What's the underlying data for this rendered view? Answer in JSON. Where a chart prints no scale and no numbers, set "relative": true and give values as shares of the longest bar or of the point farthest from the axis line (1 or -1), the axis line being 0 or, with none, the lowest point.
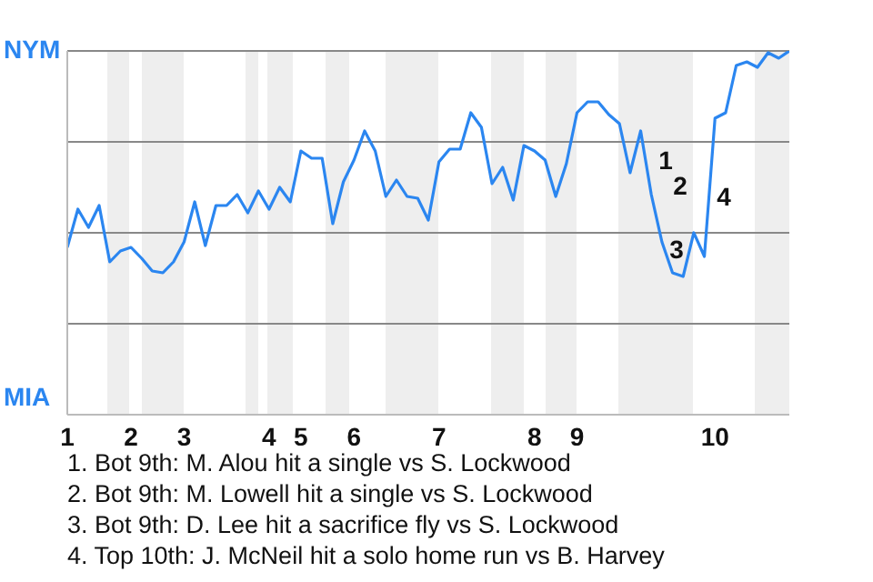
{
  "chart_data": {
    "type": "line",
    "relative": true,
    "marker": "none",
    "line_style": "solid",
    "grid": "y",
    "categories": [
      "1",
      null,
      null,
      null,
      null,
      null,
      "2",
      null,
      null,
      null,
      null,
      "3",
      null,
      null,
      null,
      null,
      null,
      null,
      null,
      "4",
      null,
      null,
      "5",
      null,
      null,
      null,
      null,
      "6",
      null,
      null,
      null,
      null,
      null,
      null,
      null,
      "7",
      null,
      null,
      null,
      null,
      null,
      null,
      null,
      null,
      "8",
      null,
      null,
      null,
      "9",
      null,
      null,
      null,
      null,
      null,
      null,
      null,
      null,
      null,
      null,
      null,
      null,
      "10",
      null,
      null,
      null,
      null,
      null,
      null,
      null
    ],
    "series": [
      {
        "color": "#2b86f0",
        "values": [
          0.46,
          0.565,
          0.515,
          0.575,
          0.42,
          0.45,
          0.46,
          0.43,
          0.395,
          0.39,
          0.42,
          0.475,
          0.585,
          0.465,
          0.575,
          0.575,
          0.605,
          0.555,
          0.615,
          0.565,
          0.625,
          0.585,
          0.725,
          0.705,
          0.705,
          0.525,
          0.64,
          0.7,
          0.78,
          0.725,
          0.6,
          0.645,
          0.6,
          0.595,
          0.535,
          0.695,
          0.73,
          0.73,
          0.83,
          0.79,
          0.635,
          0.68,
          0.59,
          0.74,
          0.725,
          0.7,
          0.6,
          0.69,
          0.83,
          0.86,
          0.86,
          0.825,
          0.8,
          0.665,
          0.78,
          0.605,
          0.475,
          0.39,
          0.38,
          0.5,
          0.435,
          0.815,
          0.83,
          0.96,
          0.97,
          0.955,
          0.995,
          0.98,
          1
        ]
      }
    ],
    "annotations": [
      "NYM",
      "MIA",
      "1",
      "2",
      "3",
      "4",
      "1. Bot 9th: M. Alou hit a single vs S. Lockwood",
      "2. Bot 9th: M. Lowell hit a single vs S. Lockwood",
      "3. Bot 9th: D. Lee hit a sacrifice fly vs S. Lockwood",
      "4. Top 10th: J. McNeil hit a solo home run vs B. Harvey"
    ]
  }
}
